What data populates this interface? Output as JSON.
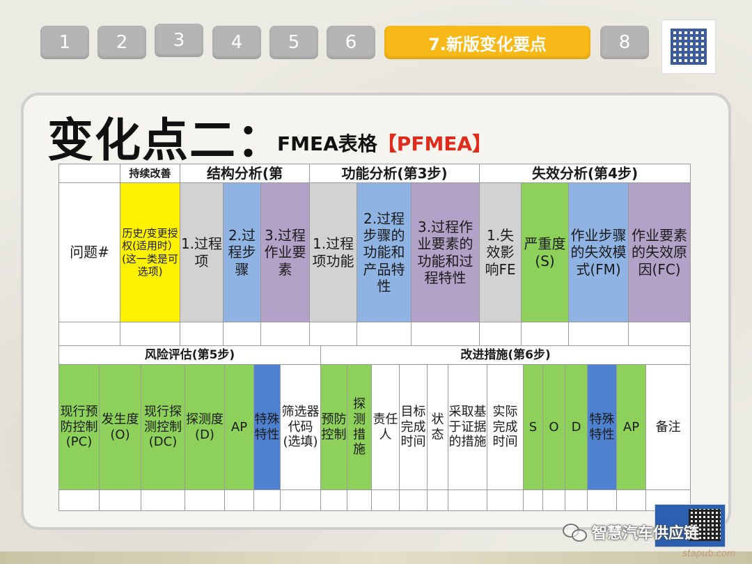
{
  "nav": {
    "tabs": [
      {
        "label": "1"
      },
      {
        "label": "2"
      },
      {
        "label": "3"
      },
      {
        "label": "4"
      },
      {
        "label": "5"
      },
      {
        "label": "6"
      },
      {
        "label": "7.新版变化要点"
      },
      {
        "label": "8"
      }
    ],
    "active_index": 6
  },
  "title": {
    "main": "变化点二：",
    "sub": "FMEA表格",
    "sub_red": "【PFMEA】"
  },
  "table_top": {
    "groups": {
      "continuous": "持续改善",
      "structure": "结构分析(第",
      "function": "功能分析(第3步)",
      "failure": "失效分析(第4步)"
    },
    "columns": [
      "问题#",
      "历史/变更授权(适用时）(这一类是可选项)",
      "1.过程项",
      "2.过程步骤",
      "3.过程作业要素",
      "1.过程项功能",
      "2.过程步骤的功能和产品特性",
      "3.过程作业要素的功能和过程特性",
      "1.失效影响FE",
      "严重度(S)",
      "作业步骤的失效模式(FM)",
      "作业要素的失效原因(FC)"
    ]
  },
  "table_bottom": {
    "groups": {
      "risk": "风险评估(第5步)",
      "improve": "改进措施(第6步)"
    },
    "columns": [
      "现行预防控制(PC)",
      "发生度(O)",
      "现行探测控制(DC)",
      "探测度(D)",
      "AP",
      "特殊特性",
      "筛选器代码(选填)",
      "预防控制",
      "探测措施",
      "责任人",
      "目标完成时间",
      "状态",
      "采取基于证据的措施",
      "实际完成时间",
      "S",
      "O",
      "D",
      "特殊特性",
      "AP",
      "备注"
    ]
  },
  "footer": {
    "wechat_label": "智慧汽车供应链",
    "watermark": "stapub.com"
  },
  "colors": {
    "nav_inactive": "#b5b5b5",
    "nav_active": "#f6b917",
    "yellow": "#fef200",
    "gray": "#d2d2d2",
    "blue": "#8fb4e3",
    "purple": "#b3a2c7",
    "green": "#8ed15a",
    "dark_blue": "#4f81d1",
    "title_red": "#e02a1b"
  }
}
